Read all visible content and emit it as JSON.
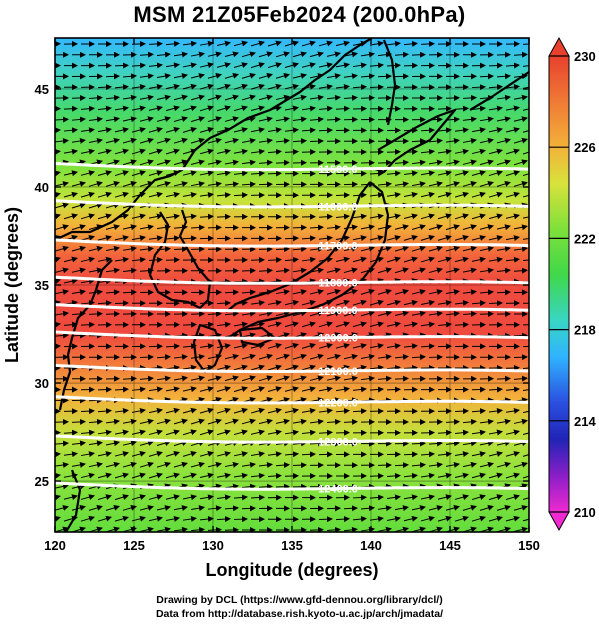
{
  "title": "MSM 21Z05Feb2024 (200.0hPa)",
  "credits": [
    "Drawing by DCL (https://www.gfd-dennou.org/library/dcl/)",
    "Data from http://database.rish.kyoto-u.ac.jp/arch/jmadata/"
  ],
  "chart_data": {
    "type": "heatmap",
    "xlabel": "Longitude (degrees)",
    "ylabel": "Latitude  (degrees)",
    "xlim": [
      120,
      150
    ],
    "ylim": [
      22.4,
      47.6
    ],
    "xticks": [
      120,
      125,
      130,
      135,
      140,
      145,
      150
    ],
    "yticks": [
      25,
      30,
      35,
      40,
      45
    ],
    "colorbar": {
      "range": [
        210,
        230
      ],
      "ticks": [
        210,
        214,
        218,
        222,
        226,
        230
      ]
    },
    "temperature_by_latitude": [
      {
        "lat": 47.6,
        "value": 218.5
      },
      {
        "lat": 45.5,
        "value": 220.0
      },
      {
        "lat": 43.0,
        "value": 222.0
      },
      {
        "lat": 40.5,
        "value": 223.5
      },
      {
        "lat": 38.5,
        "value": 225.5
      },
      {
        "lat": 36.5,
        "value": 228.0
      },
      {
        "lat": 35.0,
        "value": 229.2
      },
      {
        "lat": 33.0,
        "value": 229.0
      },
      {
        "lat": 31.0,
        "value": 228.0
      },
      {
        "lat": 29.0,
        "value": 226.5
      },
      {
        "lat": 27.0,
        "value": 224.5
      },
      {
        "lat": 25.0,
        "value": 223.0
      },
      {
        "lat": 22.4,
        "value": 222.0
      }
    ],
    "height_contours": [
      {
        "label": "11500.0",
        "lat": 41.2
      },
      {
        "label": "11600.0",
        "lat": 39.3
      },
      {
        "label": "11700.0",
        "lat": 37.3
      },
      {
        "label": "11800.0",
        "lat": 35.4
      },
      {
        "label": "11900.0",
        "lat": 34.0
      },
      {
        "label": "12000.0",
        "lat": 32.6
      },
      {
        "label": "12100.0",
        "lat": 30.9
      },
      {
        "label": "12200.0",
        "lat": 29.3
      },
      {
        "label": "12300.0",
        "lat": 27.3
      },
      {
        "label": "12400.0",
        "lat": 24.9
      }
    ],
    "wind": "uniform westerly (left-to-right) vectors across the domain"
  }
}
